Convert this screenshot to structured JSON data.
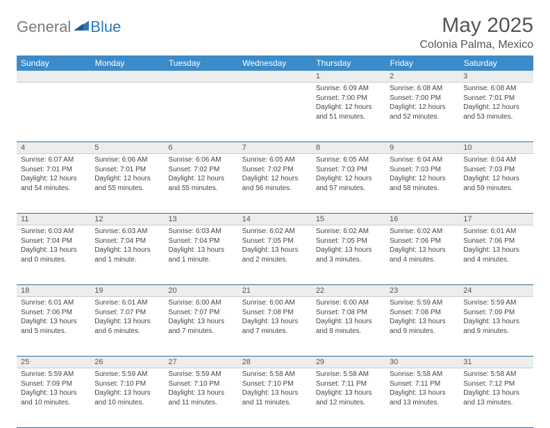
{
  "brand": {
    "part1": "General",
    "part2": "Blue"
  },
  "title": "May 2025",
  "location": "Colonia Palma, Mexico",
  "colors": {
    "header_bg": "#3b8bc9",
    "header_text": "#ffffff",
    "daynum_bg": "#eceded",
    "row_border": "#2f6a9c",
    "brand_grey": "#7a7a7a",
    "brand_blue": "#2b78b8",
    "text": "#444444"
  },
  "daysOfWeek": [
    "Sunday",
    "Monday",
    "Tuesday",
    "Wednesday",
    "Thursday",
    "Friday",
    "Saturday"
  ],
  "weeks": [
    [
      {
        "n": "",
        "lines": []
      },
      {
        "n": "",
        "lines": []
      },
      {
        "n": "",
        "lines": []
      },
      {
        "n": "",
        "lines": []
      },
      {
        "n": "1",
        "lines": [
          "Sunrise: 6:09 AM",
          "Sunset: 7:00 PM",
          "Daylight: 12 hours",
          "and 51 minutes."
        ]
      },
      {
        "n": "2",
        "lines": [
          "Sunrise: 6:08 AM",
          "Sunset: 7:00 PM",
          "Daylight: 12 hours",
          "and 52 minutes."
        ]
      },
      {
        "n": "3",
        "lines": [
          "Sunrise: 6:08 AM",
          "Sunset: 7:01 PM",
          "Daylight: 12 hours",
          "and 53 minutes."
        ]
      }
    ],
    [
      {
        "n": "4",
        "lines": [
          "Sunrise: 6:07 AM",
          "Sunset: 7:01 PM",
          "Daylight: 12 hours",
          "and 54 minutes."
        ]
      },
      {
        "n": "5",
        "lines": [
          "Sunrise: 6:06 AM",
          "Sunset: 7:01 PM",
          "Daylight: 12 hours",
          "and 55 minutes."
        ]
      },
      {
        "n": "6",
        "lines": [
          "Sunrise: 6:06 AM",
          "Sunset: 7:02 PM",
          "Daylight: 12 hours",
          "and 55 minutes."
        ]
      },
      {
        "n": "7",
        "lines": [
          "Sunrise: 6:05 AM",
          "Sunset: 7:02 PM",
          "Daylight: 12 hours",
          "and 56 minutes."
        ]
      },
      {
        "n": "8",
        "lines": [
          "Sunrise: 6:05 AM",
          "Sunset: 7:03 PM",
          "Daylight: 12 hours",
          "and 57 minutes."
        ]
      },
      {
        "n": "9",
        "lines": [
          "Sunrise: 6:04 AM",
          "Sunset: 7:03 PM",
          "Daylight: 12 hours",
          "and 58 minutes."
        ]
      },
      {
        "n": "10",
        "lines": [
          "Sunrise: 6:04 AM",
          "Sunset: 7:03 PM",
          "Daylight: 12 hours",
          "and 59 minutes."
        ]
      }
    ],
    [
      {
        "n": "11",
        "lines": [
          "Sunrise: 6:03 AM",
          "Sunset: 7:04 PM",
          "Daylight: 13 hours",
          "and 0 minutes."
        ]
      },
      {
        "n": "12",
        "lines": [
          "Sunrise: 6:03 AM",
          "Sunset: 7:04 PM",
          "Daylight: 13 hours",
          "and 1 minute."
        ]
      },
      {
        "n": "13",
        "lines": [
          "Sunrise: 6:03 AM",
          "Sunset: 7:04 PM",
          "Daylight: 13 hours",
          "and 1 minute."
        ]
      },
      {
        "n": "14",
        "lines": [
          "Sunrise: 6:02 AM",
          "Sunset: 7:05 PM",
          "Daylight: 13 hours",
          "and 2 minutes."
        ]
      },
      {
        "n": "15",
        "lines": [
          "Sunrise: 6:02 AM",
          "Sunset: 7:05 PM",
          "Daylight: 13 hours",
          "and 3 minutes."
        ]
      },
      {
        "n": "16",
        "lines": [
          "Sunrise: 6:02 AM",
          "Sunset: 7:06 PM",
          "Daylight: 13 hours",
          "and 4 minutes."
        ]
      },
      {
        "n": "17",
        "lines": [
          "Sunrise: 6:01 AM",
          "Sunset: 7:06 PM",
          "Daylight: 13 hours",
          "and 4 minutes."
        ]
      }
    ],
    [
      {
        "n": "18",
        "lines": [
          "Sunrise: 6:01 AM",
          "Sunset: 7:06 PM",
          "Daylight: 13 hours",
          "and 5 minutes."
        ]
      },
      {
        "n": "19",
        "lines": [
          "Sunrise: 6:01 AM",
          "Sunset: 7:07 PM",
          "Daylight: 13 hours",
          "and 6 minutes."
        ]
      },
      {
        "n": "20",
        "lines": [
          "Sunrise: 6:00 AM",
          "Sunset: 7:07 PM",
          "Daylight: 13 hours",
          "and 7 minutes."
        ]
      },
      {
        "n": "21",
        "lines": [
          "Sunrise: 6:00 AM",
          "Sunset: 7:08 PM",
          "Daylight: 13 hours",
          "and 7 minutes."
        ]
      },
      {
        "n": "22",
        "lines": [
          "Sunrise: 6:00 AM",
          "Sunset: 7:08 PM",
          "Daylight: 13 hours",
          "and 8 minutes."
        ]
      },
      {
        "n": "23",
        "lines": [
          "Sunrise: 5:59 AM",
          "Sunset: 7:08 PM",
          "Daylight: 13 hours",
          "and 9 minutes."
        ]
      },
      {
        "n": "24",
        "lines": [
          "Sunrise: 5:59 AM",
          "Sunset: 7:09 PM",
          "Daylight: 13 hours",
          "and 9 minutes."
        ]
      }
    ],
    [
      {
        "n": "25",
        "lines": [
          "Sunrise: 5:59 AM",
          "Sunset: 7:09 PM",
          "Daylight: 13 hours",
          "and 10 minutes."
        ]
      },
      {
        "n": "26",
        "lines": [
          "Sunrise: 5:59 AM",
          "Sunset: 7:10 PM",
          "Daylight: 13 hours",
          "and 10 minutes."
        ]
      },
      {
        "n": "27",
        "lines": [
          "Sunrise: 5:59 AM",
          "Sunset: 7:10 PM",
          "Daylight: 13 hours",
          "and 11 minutes."
        ]
      },
      {
        "n": "28",
        "lines": [
          "Sunrise: 5:58 AM",
          "Sunset: 7:10 PM",
          "Daylight: 13 hours",
          "and 11 minutes."
        ]
      },
      {
        "n": "29",
        "lines": [
          "Sunrise: 5:58 AM",
          "Sunset: 7:11 PM",
          "Daylight: 13 hours",
          "and 12 minutes."
        ]
      },
      {
        "n": "30",
        "lines": [
          "Sunrise: 5:58 AM",
          "Sunset: 7:11 PM",
          "Daylight: 13 hours",
          "and 13 minutes."
        ]
      },
      {
        "n": "31",
        "lines": [
          "Sunrise: 5:58 AM",
          "Sunset: 7:12 PM",
          "Daylight: 13 hours",
          "and 13 minutes."
        ]
      }
    ]
  ]
}
